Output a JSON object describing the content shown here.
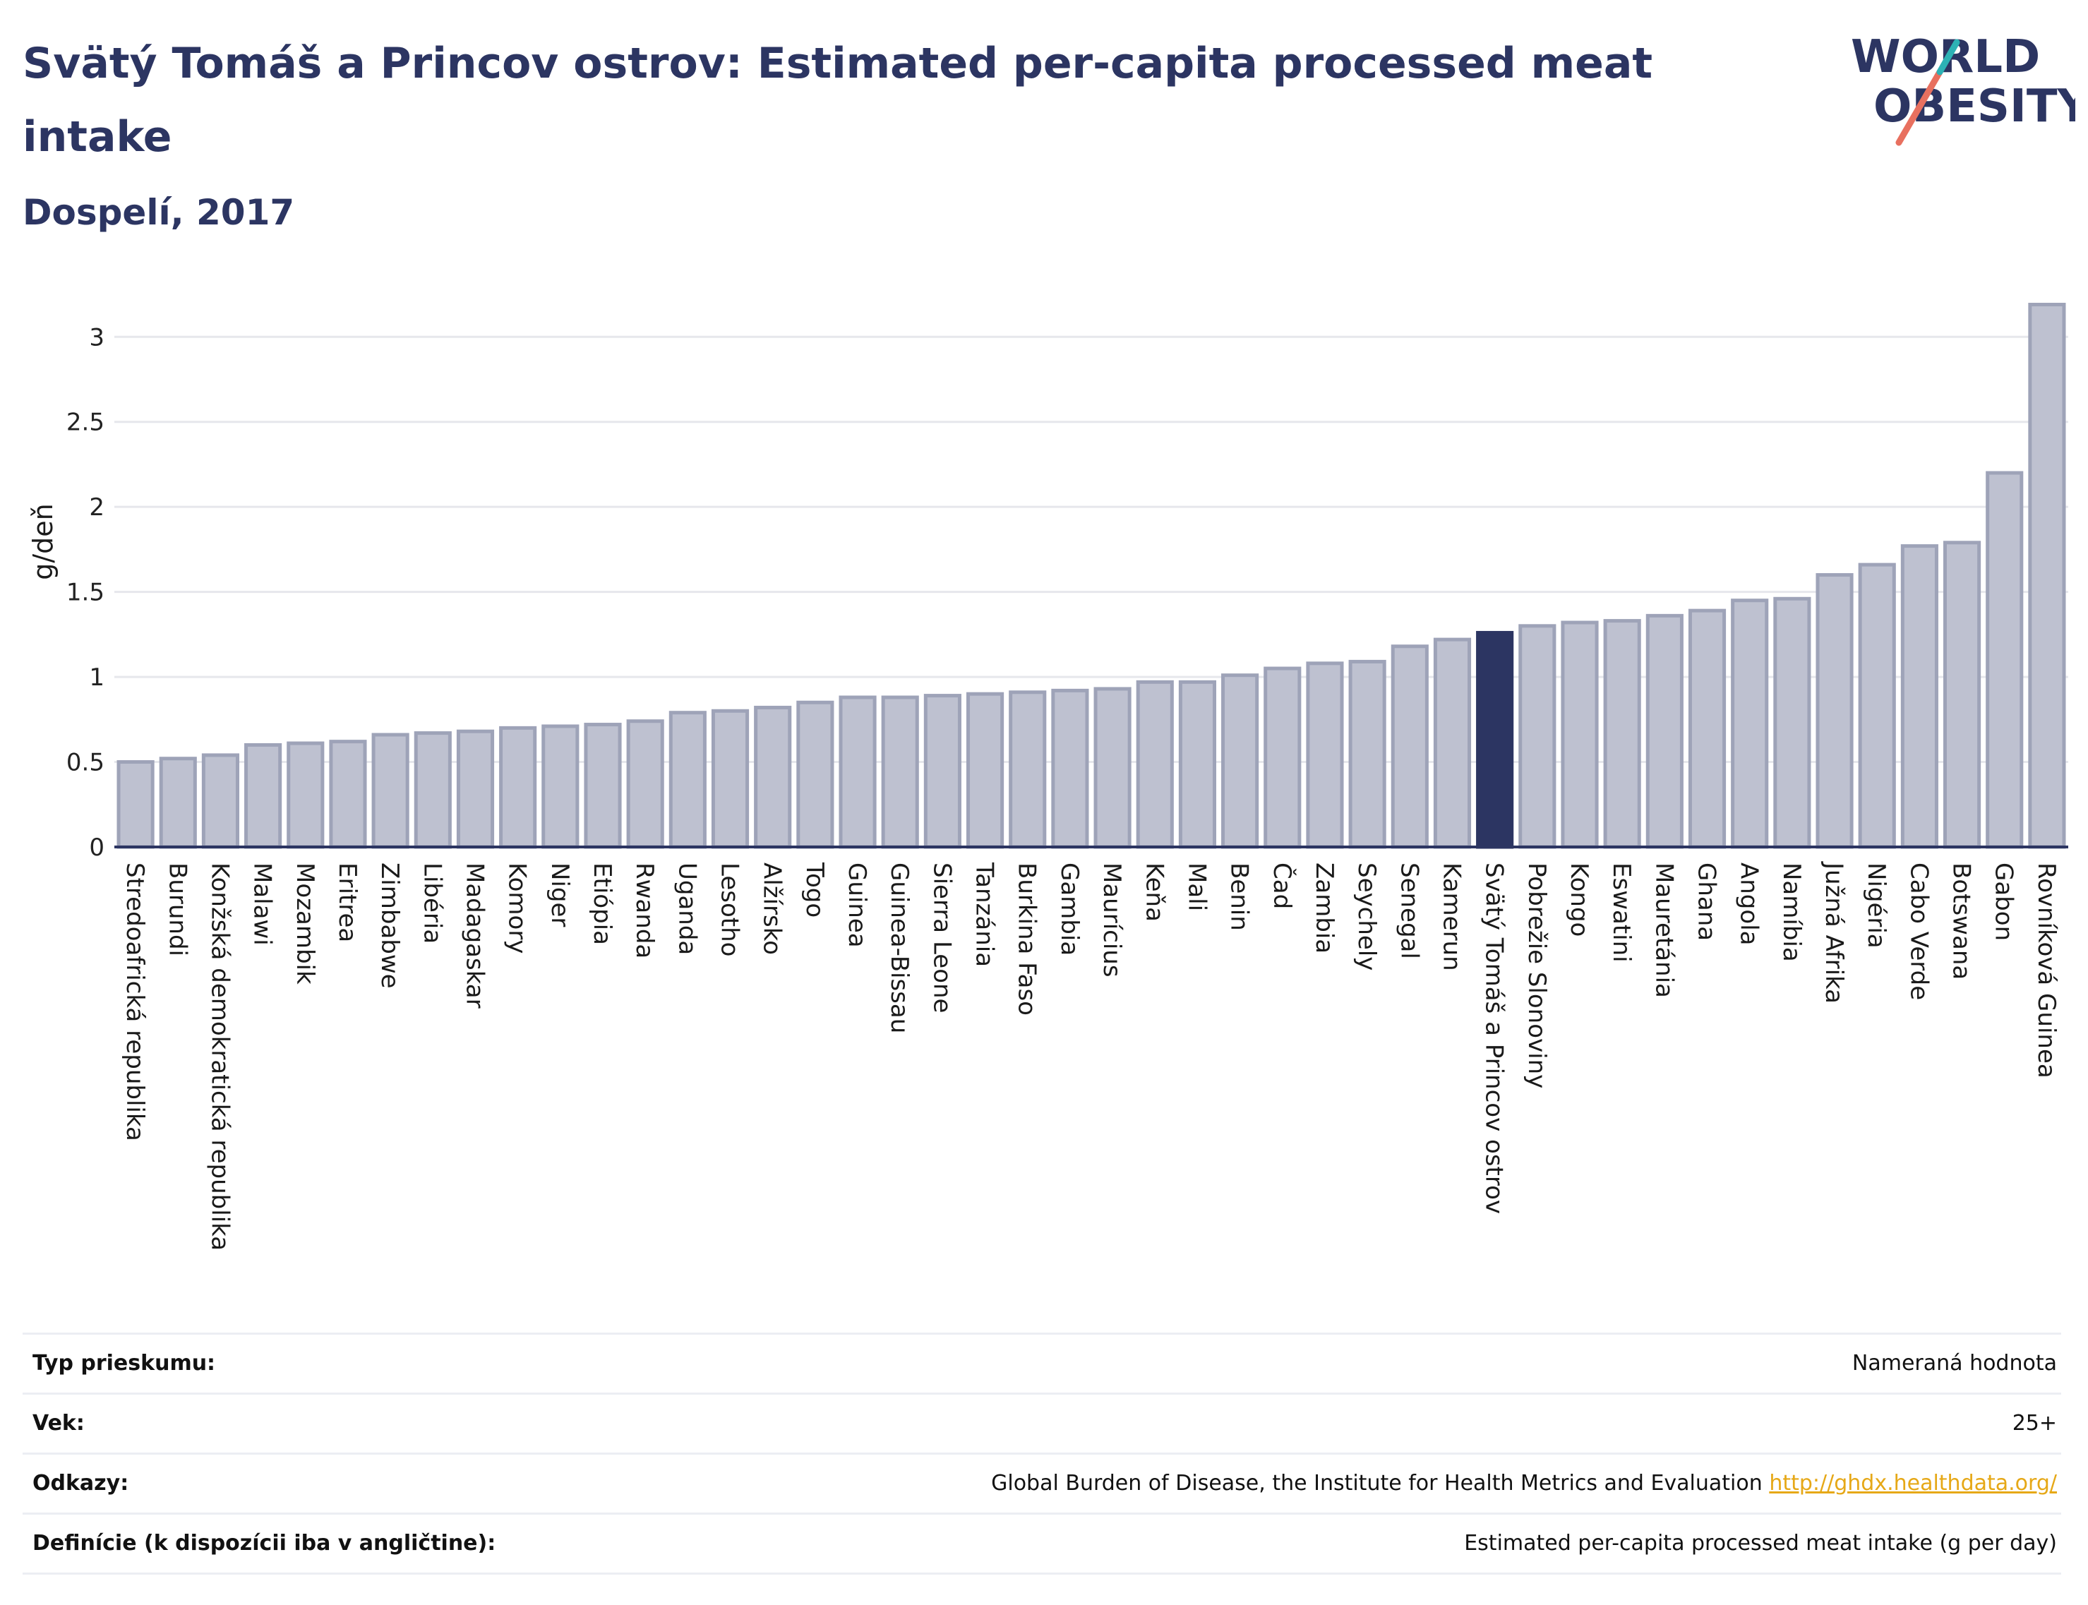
{
  "header": {
    "title": "Svätý Tomáš a Princov ostrov: Estimated per-capita processed meat intake",
    "subtitle": "Dospelí, 2017"
  },
  "logo": {
    "line1": "WORLD",
    "line2": "OBESITY",
    "text_color": "#2c3562",
    "slash_colors": [
      "#e8705f",
      "#2db2b5"
    ]
  },
  "colors": {
    "bar": "#bec1d0",
    "bar_border": "#9ea3b8",
    "highlight": "#2c3562",
    "grid": "#e6e7ec",
    "axis": "#2c3562",
    "link": "#e6a817"
  },
  "chart_data": {
    "type": "bar",
    "ylabel": "g/deň",
    "ylim": [
      0,
      3.3
    ],
    "yticks": [
      0,
      0.5,
      1,
      1.5,
      2,
      2.5,
      3
    ],
    "ytick_labels": [
      "0",
      "0.5",
      "1",
      "1.5",
      "2",
      "2.5",
      "3"
    ],
    "grid": true,
    "highlight": "Svätý Tomáš a Princov ostrov",
    "categories": [
      "Stredoafrická republika",
      "Burundi",
      "Konžská demokratická republika",
      "Malawi",
      "Mozambik",
      "Eritrea",
      "Zimbabwe",
      "Libéria",
      "Madagaskar",
      "Komory",
      "Niger",
      "Etiópia",
      "Rwanda",
      "Uganda",
      "Lesotho",
      "Alžírsko",
      "Togo",
      "Guinea",
      "Guinea-Bissau",
      "Sierra Leone",
      "Tanzánia",
      "Burkina Faso",
      "Gambia",
      "Maurícius",
      "Keňa",
      "Mali",
      "Benin",
      "Čad",
      "Zambia",
      "Seychely",
      "Senegal",
      "Kamerun",
      "Svätý Tomáš a Princov ostrov",
      "Pobrežie Slonoviny",
      "Kongo",
      "Eswatini",
      "Mauretánia",
      "Ghana",
      "Angola",
      "Namíbia",
      "Južná Afrika",
      "Nigéria",
      "Cabo Verde",
      "Botswana",
      "Gabon",
      "Rovníková Guinea"
    ],
    "values": [
      0.5,
      0.52,
      0.54,
      0.6,
      0.61,
      0.62,
      0.66,
      0.67,
      0.68,
      0.7,
      0.71,
      0.72,
      0.74,
      0.79,
      0.8,
      0.82,
      0.85,
      0.88,
      0.88,
      0.89,
      0.9,
      0.91,
      0.92,
      0.93,
      0.97,
      0.97,
      1.01,
      1.05,
      1.08,
      1.09,
      1.18,
      1.22,
      1.26,
      1.3,
      1.32,
      1.33,
      1.36,
      1.39,
      1.45,
      1.46,
      1.6,
      1.66,
      1.77,
      1.79,
      2.2,
      3.19
    ]
  },
  "meta": {
    "rows": [
      {
        "key": "Typ prieskumu:",
        "value": "Nameraná hodnota"
      },
      {
        "key": "Vek:",
        "value": "25+"
      },
      {
        "key": "Odkazy:",
        "value": "Global Burden of Disease, the Institute for Health Metrics and Evaluation",
        "link": "http://ghdx.healthdata.org/"
      },
      {
        "key": "Definície (k dispozícii iba v angličtine):",
        "value": "Estimated per-capita processed meat intake (g per day)"
      }
    ]
  }
}
